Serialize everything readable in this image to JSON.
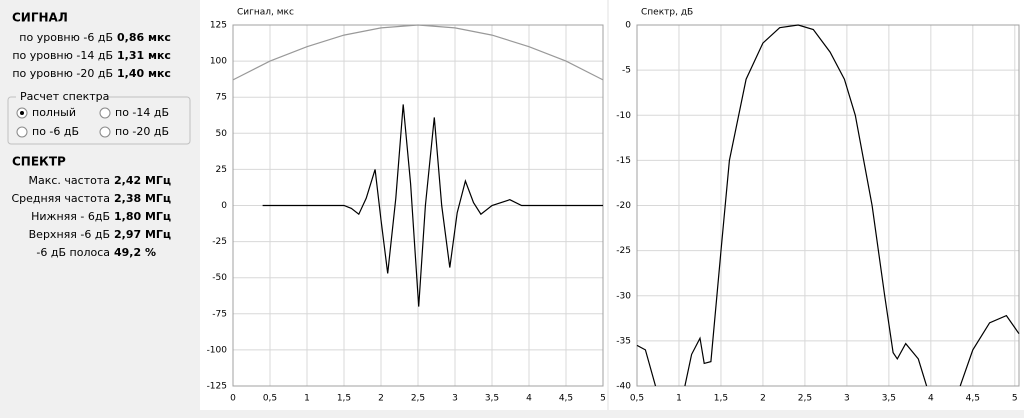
{
  "panel": {
    "signal_title": "СИГНАЛ",
    "signal_rows": [
      {
        "label": "по уровню -6 дБ",
        "value": "0,86 мкс"
      },
      {
        "label": "по уровню -14 дБ",
        "value": "1,31 мкс"
      },
      {
        "label": "по уровню -20 дБ",
        "value": "1,40 мкс"
      }
    ],
    "group_title": "Расчет спектра",
    "options": [
      "полный",
      "по -14 дБ",
      "по -6 дБ",
      "по -20 дБ"
    ],
    "selected": 0,
    "spectrum_title": "СПЕКТР",
    "spectrum_rows": [
      {
        "label": "Макс. частота",
        "value": "2,42 МГц"
      },
      {
        "label": "Средняя частота",
        "value": "2,38 МГц"
      },
      {
        "label": "Нижняя - 6дБ",
        "value": "1,80 МГц"
      },
      {
        "label": "Верхняя -6 дБ",
        "value": "2,97 МГц"
      },
      {
        "label": "-6 дБ полоса",
        "value": "49,2 %"
      }
    ]
  },
  "chart_data": [
    {
      "type": "line",
      "title": "Сигнал, мкс",
      "xlim": [
        0,
        5
      ],
      "ylim": [
        -125,
        125
      ],
      "grid": true,
      "xticks": [
        0,
        {
          "value": 0.5,
          "label": "0,5"
        },
        1,
        {
          "value": 1.5,
          "label": "1,5"
        },
        2,
        {
          "value": 2.5,
          "label": "2,5"
        },
        3,
        {
          "value": 3.5,
          "label": "3,5"
        },
        4,
        {
          "value": 4.5,
          "label": "4,5"
        },
        5
      ],
      "yticks": [
        125,
        100,
        75,
        50,
        25,
        0,
        -25,
        -50,
        -75,
        -100,
        -125
      ],
      "series": [
        {
          "color": "#999999",
          "x": [
            0,
            0.5,
            1,
            1.5,
            2,
            2.5,
            3,
            3.5,
            4,
            4.5,
            5
          ],
          "values": [
            87,
            100,
            110,
            118,
            123,
            125,
            123,
            118,
            110,
            100,
            87
          ]
        },
        {
          "color": "#000000",
          "x": [
            0.4,
            1.5,
            1.6,
            1.7,
            1.8,
            1.92,
            2.0,
            2.09,
            2.2,
            2.3,
            2.4,
            2.51,
            2.6,
            2.72,
            2.82,
            2.93,
            3.03,
            3.14,
            3.25,
            3.35,
            3.5,
            3.74,
            3.9,
            5
          ],
          "values": [
            0,
            0,
            -2,
            -6,
            5,
            25,
            -10,
            -47,
            5,
            70,
            15,
            -70,
            0,
            61,
            0,
            -43,
            -5,
            17,
            2,
            -6,
            0,
            4,
            0,
            0
          ]
        }
      ]
    },
    {
      "type": "line",
      "title": "Спектр, дБ",
      "xlim": [
        0.5,
        5.05
      ],
      "ylim": [
        -40,
        0
      ],
      "grid": true,
      "xticks": [
        {
          "value": 0.5,
          "label": "0,5"
        },
        1,
        {
          "value": 1.5,
          "label": "1,5"
        },
        2,
        {
          "value": 2.5,
          "label": "2,5"
        },
        3,
        {
          "value": 3.5,
          "label": "3,5"
        },
        4,
        {
          "value": 4.5,
          "label": "4,5"
        },
        5
      ],
      "yticks": [
        0,
        -5,
        -10,
        -15,
        -20,
        -25,
        -30,
        -35,
        -40
      ],
      "series": [
        {
          "color": "#000000",
          "x": [
            0.5,
            0.6,
            0.72,
            0.9,
            1.07,
            1.15,
            1.25,
            1.3,
            1.38,
            1.5,
            1.6,
            1.8,
            2.0,
            2.2,
            2.42,
            2.6,
            2.8,
            2.97,
            3.1,
            3.3,
            3.45,
            3.55,
            3.6,
            3.7,
            3.85,
            3.95,
            4.2,
            4.35,
            4.5,
            4.7,
            4.9,
            5.05
          ],
          "values": [
            -35.5,
            -36,
            -40,
            null,
            -40,
            -36.5,
            -34.7,
            -37.5,
            -37.3,
            -25,
            -15,
            -6,
            -2,
            -0.3,
            0,
            -0.5,
            -3,
            -6,
            -10,
            -20,
            -30,
            -36.3,
            -37,
            -35.3,
            -37,
            -40,
            null,
            -40,
            -36,
            -33,
            -32.2,
            -34.2
          ]
        }
      ]
    }
  ]
}
